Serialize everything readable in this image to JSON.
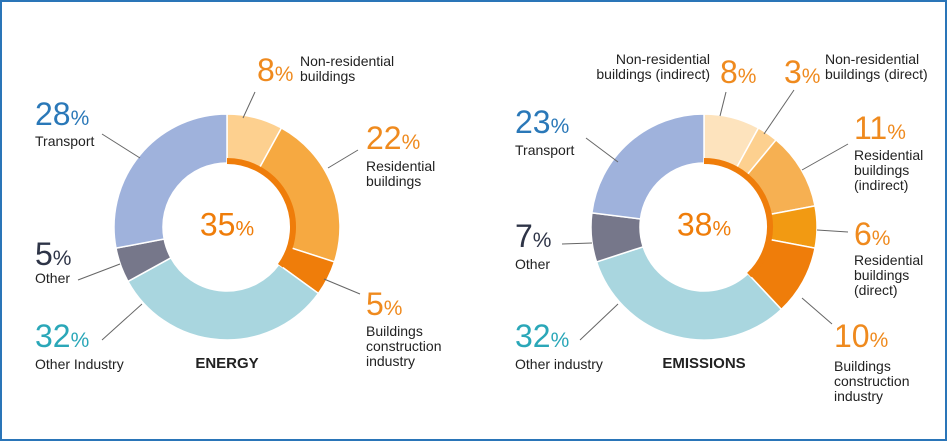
{
  "chart_data": [
    {
      "type": "donut",
      "title": "ENERGY",
      "center_value": 35,
      "center_label": "35%",
      "categories": [
        "Non-residential buildings",
        "Residential buildings",
        "Buildings construction industry",
        "Other Industry",
        "Other",
        "Transport"
      ],
      "values": [
        8,
        22,
        5,
        32,
        5,
        28
      ],
      "value_labels": [
        "8%",
        "22%",
        "5%",
        "32%",
        "5%",
        "28%"
      ],
      "colors": [
        "#fdd08f",
        "#f6a941",
        "#ef7d0a",
        "#a9d6df",
        "#76778a",
        "#9fb2dc"
      ]
    },
    {
      "type": "donut",
      "title": "EMISSIONS",
      "center_value": 38,
      "center_label": "38%",
      "categories": [
        "Non-residential buildings (indirect)",
        "Non-residential buildings (direct)",
        "Residential buildings (indirect)",
        "Residential buildings (direct)",
        "Buildings construction industry",
        "Other industry",
        "Other",
        "Transport"
      ],
      "values": [
        8,
        3,
        11,
        6,
        10,
        32,
        7,
        23
      ],
      "value_labels": [
        "8%",
        "3%",
        "11%",
        "6%",
        "10%",
        "32%",
        "7%",
        "23%"
      ],
      "colors": [
        "#fde3bd",
        "#fdd08f",
        "#f6b052",
        "#f29a12",
        "#ef7d0a",
        "#a9d6df",
        "#76778a",
        "#9fb2dc"
      ]
    }
  ]
}
